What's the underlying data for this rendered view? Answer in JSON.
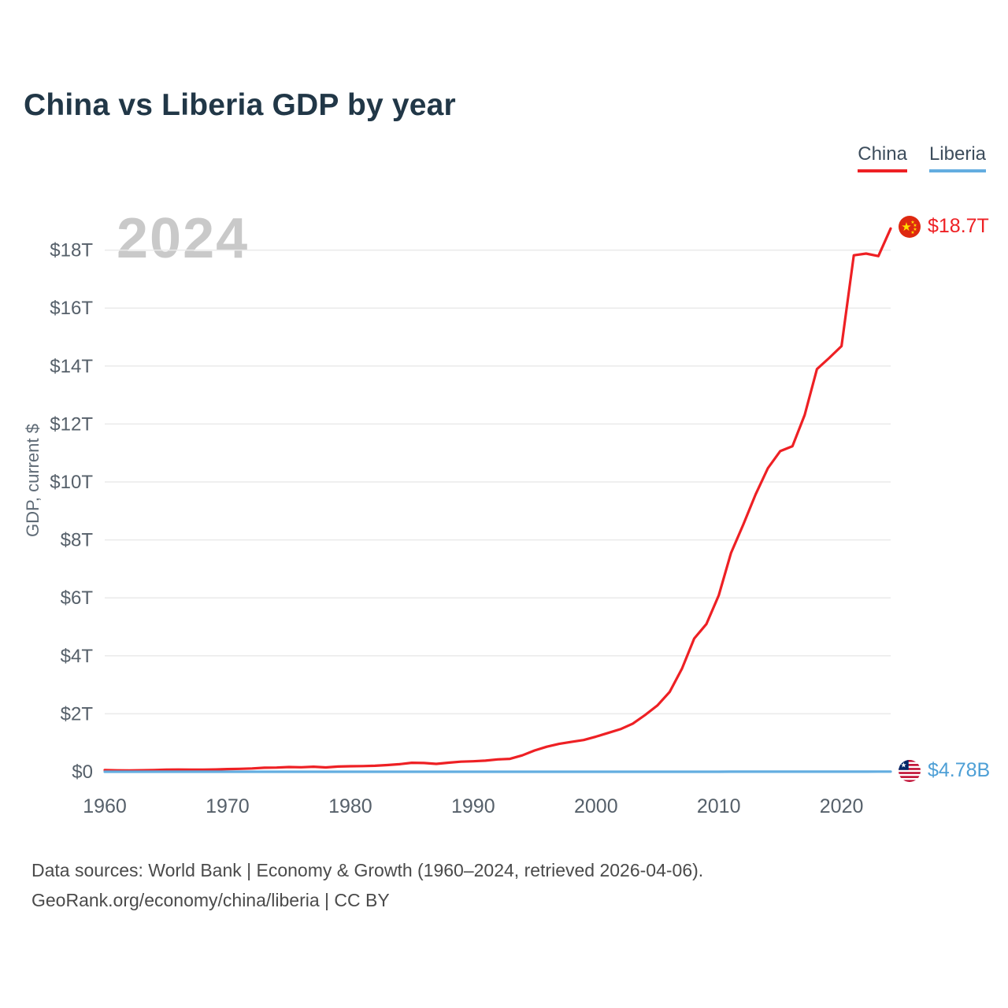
{
  "watermark": "2024",
  "chart_data": {
    "type": "line",
    "title": "China vs Liberia GDP by year",
    "xlabel": "",
    "ylabel": "GDP, current $",
    "unit": "USD billions",
    "grid": true,
    "legend_position": "top-right",
    "xlim": [
      1960,
      2024
    ],
    "ylim_trillions": [
      0,
      19.6
    ],
    "x_ticks": [
      {
        "value": 1960,
        "label": "1960"
      },
      {
        "value": 1970,
        "label": "1970"
      },
      {
        "value": 1980,
        "label": "1980"
      },
      {
        "value": 1990,
        "label": "1990"
      },
      {
        "value": 2000,
        "label": "2000"
      },
      {
        "value": 2010,
        "label": "2010"
      },
      {
        "value": 2020,
        "label": "2020"
      }
    ],
    "y_ticks": [
      {
        "value": 0,
        "label": "$0"
      },
      {
        "value": 2,
        "label": "$2T"
      },
      {
        "value": 4,
        "label": "$4T"
      },
      {
        "value": 6,
        "label": "$6T"
      },
      {
        "value": 8,
        "label": "$8T"
      },
      {
        "value": 10,
        "label": "$10T"
      },
      {
        "value": 12,
        "label": "$12T"
      },
      {
        "value": 14,
        "label": "$14T"
      },
      {
        "value": 16,
        "label": "$16T"
      },
      {
        "value": 18,
        "label": "$18T"
      }
    ],
    "years": [
      1960,
      1961,
      1962,
      1963,
      1964,
      1965,
      1966,
      1967,
      1968,
      1969,
      1970,
      1971,
      1972,
      1973,
      1974,
      1975,
      1976,
      1977,
      1978,
      1979,
      1980,
      1981,
      1982,
      1983,
      1984,
      1985,
      1986,
      1987,
      1988,
      1989,
      1990,
      1991,
      1992,
      1993,
      1994,
      1995,
      1996,
      1997,
      1998,
      1999,
      2000,
      2001,
      2002,
      2003,
      2004,
      2005,
      2006,
      2007,
      2008,
      2009,
      2010,
      2011,
      2012,
      2013,
      2014,
      2015,
      2016,
      2017,
      2018,
      2019,
      2020,
      2021,
      2022,
      2023,
      2024
    ],
    "series": [
      {
        "name": "China",
        "color": "#ee2024",
        "end_label": "$18.7T",
        "flag": "china",
        "values_billions": [
          59.7,
          50.1,
          47.2,
          50.7,
          59.7,
          70.2,
          76.7,
          72.4,
          70.7,
          79.5,
          92.6,
          99.6,
          113.1,
          138.6,
          144.2,
          163.4,
          153.9,
          174.9,
          149.5,
          178.4,
          191.1,
          195.9,
          205.4,
          230.6,
          259.9,
          309.5,
          300.5,
          272.9,
          312.4,
          347.8,
          360.9,
          383.4,
          426.7,
          444.7,
          564.3,
          734.5,
          863.7,
          961.6,
          1029.4,
          1094.0,
          1211.3,
          1339.4,
          1470.5,
          1660.2,
          1955.3,
          2286.0,
          2752.0,
          3550.3,
          4594.3,
          5101.7,
          6087.1,
          7551.5,
          8532.3,
          9570.4,
          10475.7,
          11061.6,
          11233.3,
          12310.4,
          13894.9,
          14279.9,
          14687.7,
          17820.5,
          17881.7,
          17794.8,
          18744.7
        ]
      },
      {
        "name": "Liberia",
        "color": "#63ade0",
        "end_label": "$4.78B",
        "flag": "liberia",
        "values_billions": [
          0.22,
          0.23,
          0.24,
          0.25,
          0.27,
          0.29,
          0.31,
          0.32,
          0.33,
          0.36,
          0.39,
          0.41,
          0.43,
          0.46,
          0.53,
          0.58,
          0.62,
          0.69,
          0.76,
          0.85,
          0.98,
          0.99,
          0.96,
          0.93,
          0.91,
          0.93,
          0.93,
          0.93,
          0.96,
          0.94,
          0.38,
          0.22,
          0.17,
          0.16,
          0.13,
          0.14,
          0.28,
          0.35,
          0.38,
          0.44,
          0.53,
          0.54,
          0.56,
          0.41,
          0.46,
          0.55,
          0.61,
          0.74,
          0.85,
          0.96,
          1.29,
          1.55,
          1.81,
          2.03,
          2.1,
          2.05,
          2.1,
          2.24,
          2.42,
          2.48,
          2.48,
          3.31,
          3.71,
          4.24,
          4.78
        ]
      }
    ]
  },
  "footer": {
    "line1": "Data sources: World Bank | Economy & Growth (1960–2024, retrieved 2026-04-06).",
    "line2": "GeoRank.org/economy/china/liberia | CC BY"
  }
}
